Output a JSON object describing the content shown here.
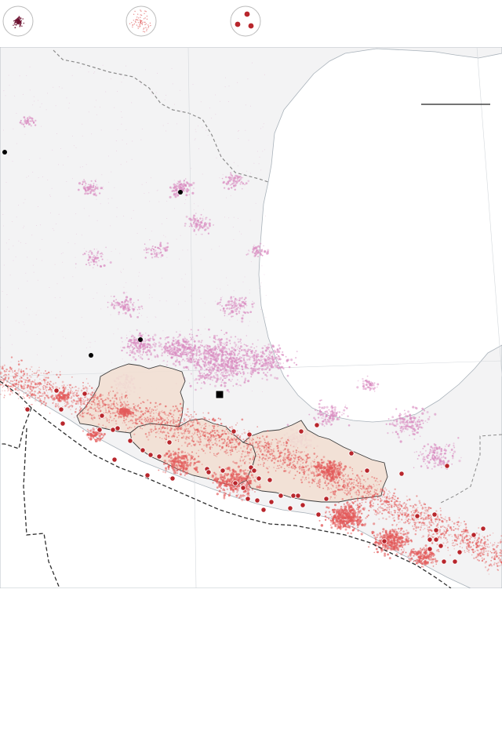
{
  "legend": {
    "items": [
      {
        "icon": "dense-quake-cluster-icon",
        "color": "#6b1030"
      },
      {
        "icon": "scattered-quake-points-icon",
        "color": "#e06060"
      },
      {
        "icon": "large-quake-dots-icon",
        "color": "#b52a2a"
      }
    ]
  },
  "colors": {
    "land": "#f4f4f5",
    "water": "#ffffff",
    "population": "#d98ac0",
    "quakes": "#e35a5a",
    "large_quakes": "#b8262c",
    "highlight_states": "#f2dfd3",
    "state_border": "#4a4a4a",
    "plate_boundary": "#333333",
    "coast": "#9aa4ad"
  },
  "markers": {
    "city_icon": "city-dot-icon",
    "capital_icon": "capital-square-icon"
  }
}
